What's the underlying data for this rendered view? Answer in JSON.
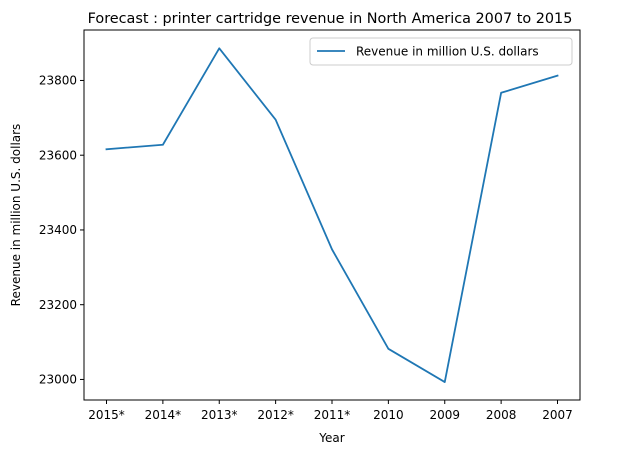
{
  "chart_data": {
    "type": "line",
    "title": "Forecast : printer cartridge revenue in North America 2007 to 2015",
    "xlabel": "Year",
    "ylabel": "Revenue in million U.S. dollars",
    "categories": [
      "2015*",
      "2014*",
      "2013*",
      "2012*",
      "2011*",
      "2010",
      "2009",
      "2008",
      "2007"
    ],
    "series": [
      {
        "name": "Revenue in million U.S. dollars",
        "values": [
          23616,
          23628,
          23886,
          23695,
          23348,
          23082,
          22993,
          23767,
          23813
        ],
        "color": "#1f77b4"
      }
    ],
    "ylim": [
      22945,
      23935
    ],
    "yticks": [
      23000,
      23200,
      23400,
      23600,
      23800
    ],
    "ytick_labels": [
      "23000",
      "23200",
      "23400",
      "23600",
      "23800"
    ],
    "grid": false,
    "legend_position": "top-right"
  }
}
